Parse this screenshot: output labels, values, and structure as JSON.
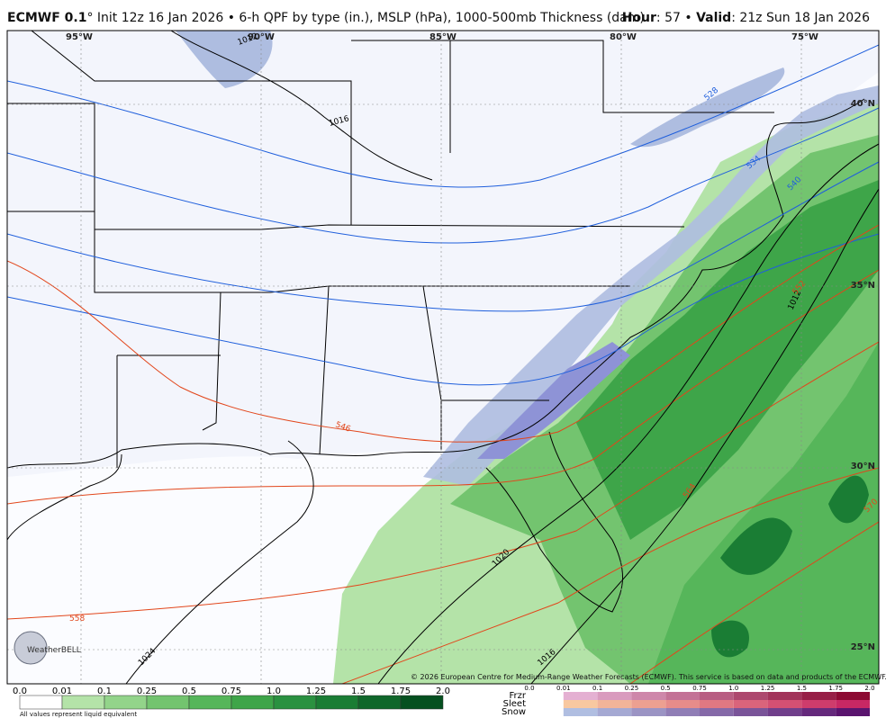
{
  "header": {
    "model": "ECMWF 0.1",
    "degree": "°",
    "description": " Init 12z 16 Jan 2026 • 6-h QPF by type (in.), MSLP (hPa), 1000-500mb Thickness (dam)",
    "hour_key": "Hour",
    "hour_value": ": 57 • ",
    "valid_key": "Valid",
    "valid_value": ": 21z Sun 18 Jan 2026"
  },
  "map": {
    "longitudes": [
      "95°W",
      "90°W",
      "85°W",
      "80°W",
      "75°W"
    ],
    "latitudes": [
      "40°N",
      "35°N",
      "30°N",
      "25°N"
    ],
    "isobar_labels": [
      "1012",
      "1016",
      "1020",
      "1024",
      "1016",
      "1012"
    ],
    "thickness_labels": [
      "546",
      "552",
      "558",
      "564",
      "570",
      "528",
      "534",
      "540"
    ],
    "logo": "WeatherBELL",
    "copyright": "© 2026 European Centre for Medium-Range Weather Forecasts (ECMWF). This service is based on data and products of the ECMWF."
  },
  "legend": {
    "rain_levels": [
      "0.0",
      "0.01",
      "0.1",
      "0.25",
      "0.5",
      "0.75",
      "1.0",
      "1.25",
      "1.5",
      "1.75",
      "2.0"
    ],
    "note": "All values represent liquid equivalent",
    "types": [
      "Frzr",
      "Sleet",
      "Snow"
    ],
    "type_levels": [
      "0.0",
      "0.01",
      "0.1",
      "0.25",
      "0.5",
      "0.75",
      "1.0",
      "1.25",
      "1.5",
      "1.75",
      "2.0"
    ]
  }
}
